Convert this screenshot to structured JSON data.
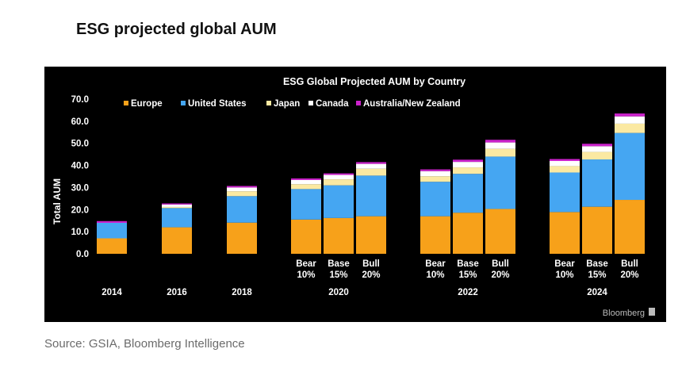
{
  "page": {
    "title": "ESG projected global AUM",
    "source": "Source: GSIA, Bloomberg Intelligence",
    "brand": "Bloomberg"
  },
  "colors": {
    "background": "#000000",
    "text": "#ffffff",
    "Europe": "#f7a11a",
    "United States": "#45a6f2",
    "Japan": "#fbe9a2",
    "Canada": "#ffffff",
    "Australia/New Zealand": "#cc22cc"
  },
  "chart_data": {
    "type": "bar",
    "stacked": true,
    "title": "ESG Global Projected AUM by Country",
    "xlabel": "",
    "ylabel": "Total AUM",
    "ylim": [
      0,
      70
    ],
    "yticks": [
      "0.0",
      "10.0",
      "20.0",
      "30.0",
      "40.0",
      "50.0",
      "60.0",
      "70.0"
    ],
    "grid": false,
    "legend_position": "top",
    "legend": [
      "Europe",
      "United States",
      "Japan",
      "Canada",
      "Australia/New Zealand"
    ],
    "groups": [
      {
        "year": "2014",
        "bars": [
          {
            "label": "",
            "values": [
              7.0,
              7.0,
              0.0,
              0.0,
              0.8
            ]
          }
        ]
      },
      {
        "year": "2016",
        "bars": [
          {
            "label": "",
            "values": [
              12.0,
              8.7,
              0.5,
              1.1,
              0.5
            ]
          }
        ]
      },
      {
        "year": "2018",
        "bars": [
          {
            "label": "",
            "values": [
              14.1,
              12.0,
              2.2,
              1.7,
              0.7
            ]
          }
        ]
      },
      {
        "year": "2020",
        "bars": [
          {
            "label": "Bear 10%",
            "values": [
              15.5,
              13.8,
              2.2,
              1.9,
              0.7
            ]
          },
          {
            "label": "Base 15%",
            "values": [
              16.2,
              14.8,
              2.7,
              2.0,
              0.7
            ]
          },
          {
            "label": "Bull 20%",
            "values": [
              17.0,
              18.4,
              3.1,
              2.2,
              0.8
            ]
          }
        ]
      },
      {
        "year": "2022",
        "bars": [
          {
            "label": "Bear 10%",
            "values": [
              17.0,
              15.6,
              2.5,
              2.3,
              0.8
            ]
          },
          {
            "label": "Base 15%",
            "values": [
              18.6,
              17.6,
              2.9,
              2.5,
              1.0
            ]
          },
          {
            "label": "Bull 20%",
            "values": [
              20.3,
              23.7,
              3.5,
              2.9,
              1.2
            ]
          }
        ]
      },
      {
        "year": "2024",
        "bars": [
          {
            "label": "Bear 10%",
            "values": [
              18.9,
              17.9,
              2.9,
              2.3,
              0.9
            ]
          },
          {
            "label": "Base 15%",
            "values": [
              21.3,
              21.4,
              3.4,
              2.6,
              1.1
            ]
          },
          {
            "label": "Bull 20%",
            "values": [
              24.4,
              30.3,
              4.2,
              3.3,
              1.3
            ]
          }
        ]
      }
    ]
  }
}
